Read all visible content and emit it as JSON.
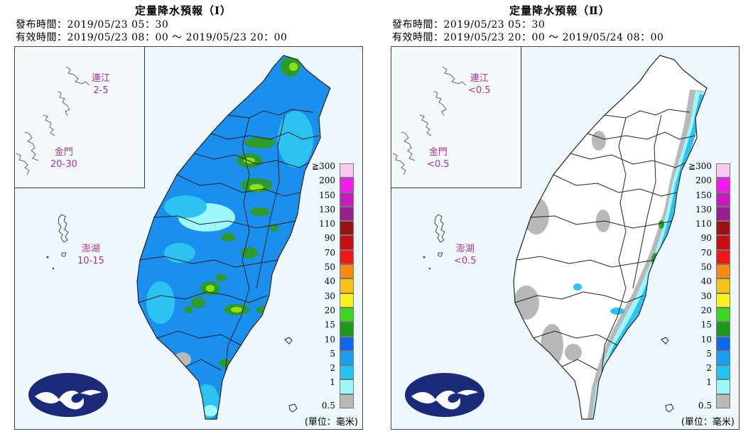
{
  "panels": [
    {
      "title": "定量降水預報（Ⅰ）",
      "issue_label": "發布時間：",
      "issue_time": "2019/05/23 05：30",
      "valid_label": "有效時間：",
      "valid_time": "2019/05/23 08：00 ～ 2019/05/23 20：00",
      "islands": {
        "matsu": {
          "name": "連江",
          "value": "2-5"
        },
        "kinmen": {
          "name": "金門",
          "value": "20-30"
        },
        "penghu": {
          "name": "澎湖",
          "value": "10-15"
        }
      }
    },
    {
      "title": "定量降水預報（Ⅱ）",
      "issue_label": "發布時間：",
      "issue_time": "2019/05/23 05：30",
      "valid_label": "有效時間：",
      "valid_time": "2019/05/23 20：00 ～ 2019/05/24 08：00",
      "islands": {
        "matsu": {
          "name": "連江",
          "value": "<0.5"
        },
        "kinmen": {
          "name": "金門",
          "value": "<0.5"
        },
        "penghu": {
          "name": "澎湖",
          "value": "<0.5"
        }
      }
    }
  ],
  "legend": {
    "labels": [
      "≧300",
      "200",
      "150",
      "130",
      "110",
      "90",
      "70",
      "50",
      "40",
      "30",
      "20",
      "15",
      "10",
      "5",
      "2",
      "1",
      "0.5"
    ],
    "colors": [
      "#f9c8f3",
      "#f01cee",
      "#c71cbd",
      "#981e8f",
      "#9a1214",
      "#c70f11",
      "#f21717",
      "#f88c10",
      "#f8c214",
      "#f9f31b",
      "#3ed61f",
      "#1c9a19",
      "#0d68ef",
      "#1b9ef6",
      "#23c3f2",
      "#97f9fb",
      "#b9b9b9"
    ],
    "unit": "(單位：毫米)"
  },
  "colors": {
    "heavy_green": "#2d9a2a",
    "yellow_green": "#8ce21a",
    "mid_blue": "#1a8fee",
    "light_blue": "#2dc3f0",
    "pale_cyan": "#9ef7fb",
    "gray": "#b8b8b8",
    "logo_navy": "#1c2a7a"
  }
}
